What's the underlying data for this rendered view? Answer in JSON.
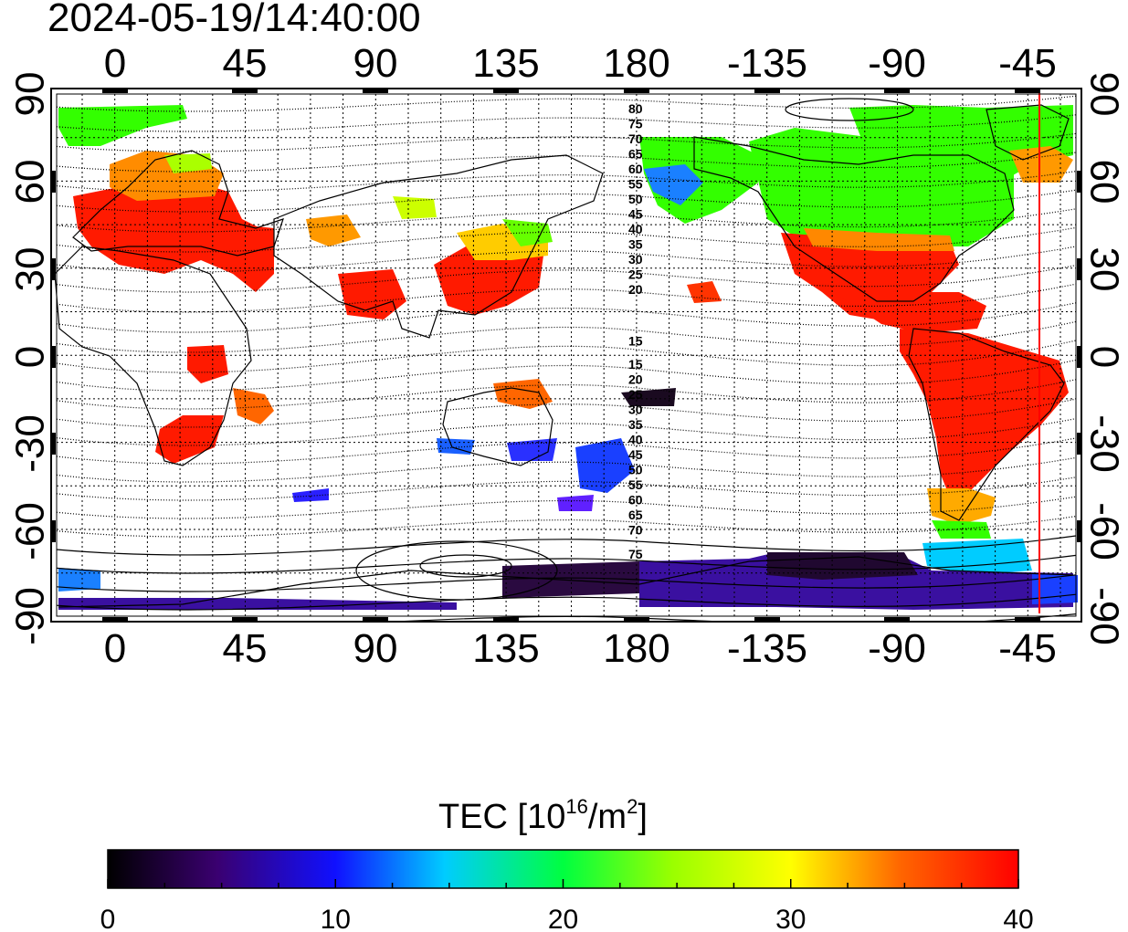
{
  "title": "2024-05-19/14:40:00",
  "axes": {
    "top_ticks": [
      "0",
      "45",
      "90",
      "135",
      "180",
      "-135",
      "-90",
      "-45"
    ],
    "bottom_ticks": [
      "0",
      "45",
      "90",
      "135",
      "180",
      "-135",
      "-90",
      "-45"
    ],
    "left_ticks": [
      "90",
      "60",
      "30",
      "0",
      "-30",
      "-60",
      "-90"
    ],
    "right_ticks": [
      "90",
      "60",
      "30",
      "0",
      "-30",
      "-60",
      "-90"
    ]
  },
  "contour_labels_north": [
    "80",
    "75",
    "70",
    "65",
    "60",
    "55",
    "50",
    "45",
    "40",
    "35",
    "30",
    "25",
    "20",
    "15"
  ],
  "contour_labels_south": [
    "15",
    "20",
    "25",
    "30",
    "35",
    "40",
    "45",
    "50",
    "55",
    "60",
    "65",
    "70",
    "75"
  ],
  "colorbar": {
    "label_main": "TEC  [10",
    "label_sup1": "16",
    "label_mid": "/m",
    "label_sup2": "2",
    "label_end": "]",
    "tick_labels": [
      "0",
      "10",
      "20",
      "30",
      "40"
    ],
    "min": 0,
    "max": 40
  },
  "colors": {
    "terminator": "#ff0000",
    "frame": "#000000",
    "high_tec": "#ff1a00",
    "mid_tec": "#33ff00",
    "low_tec": "#3300cc"
  }
}
